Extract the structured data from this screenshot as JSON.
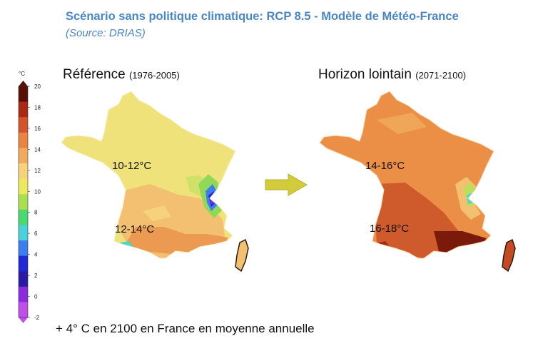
{
  "header": {
    "title": "Scénario sans politique climatique: RCP 8.5 - Modèle de Météo-France",
    "source": "(Source: DRIAS)"
  },
  "legend": {
    "unit": "°C",
    "ticks": [
      "20",
      "18",
      "16",
      "14",
      "12",
      "10",
      "8",
      "6",
      "4",
      "2",
      "0",
      "-2"
    ],
    "colors": [
      "#5a0f06",
      "#a82a12",
      "#d4542a",
      "#e98540",
      "#f2aa5c",
      "#f6d27c",
      "#ecea5c",
      "#a9e04e",
      "#4bd86e",
      "#49d3d9",
      "#3d7df0",
      "#1f2ad6",
      "#2a1ba6",
      "#8b2be0",
      "#c04fe9"
    ]
  },
  "maps": {
    "reference": {
      "title": "Référence",
      "period": "(1976-2005)",
      "north_label": "10-12°C",
      "south_label": "12-14°C"
    },
    "future": {
      "title": "Horizon lointain",
      "period": "(2071-2100)",
      "north_label": "14-16°C",
      "south_label": "16-18°C"
    }
  },
  "footer": {
    "text": "+ 4° C en 2100 en France en moyenne annuelle"
  }
}
